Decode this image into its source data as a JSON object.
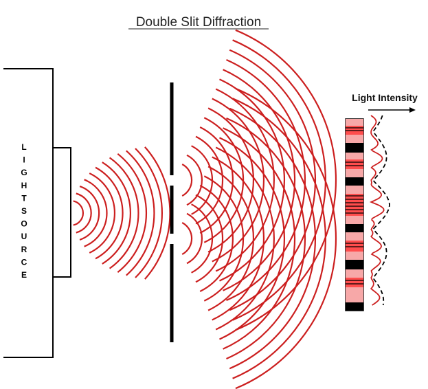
{
  "title": "Double Slit Diffraction",
  "light_source": {
    "label": "LIGHTSOURCE",
    "letters": [
      "L",
      "I",
      "G",
      "H",
      "T",
      "S",
      "O",
      "U",
      "R",
      "C",
      "E"
    ]
  },
  "intensity_label": "Light Intensity",
  "colors": {
    "wave": "#cc1f1f",
    "barrier": "#000000",
    "bright_fringe": "#ff4d4d",
    "dim_fringe": "#f7a8a8",
    "dark_band": "#000000"
  }
}
